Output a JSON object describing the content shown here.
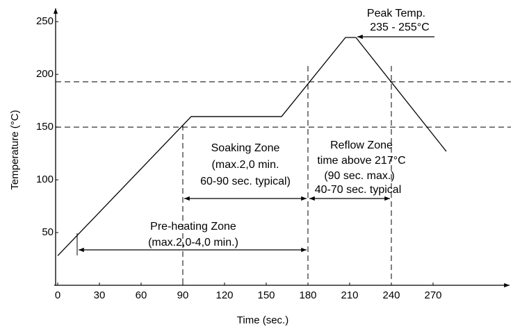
{
  "chart_data": {
    "type": "line",
    "x_label": "Time (sec.)",
    "y_label": "Temperature (°C)",
    "x": [
      0,
      96,
      161,
      207,
      214.5,
      279.5
    ],
    "series": [
      {
        "color": "#000000",
        "values": [
          28,
          160,
          160,
          235,
          235,
          127
        ]
      }
    ],
    "xlim": [
      0,
      325
    ],
    "ylim": [
      0,
      262
    ],
    "xticks": [
      0,
      30,
      60,
      90,
      120,
      150,
      180,
      210,
      240,
      270
    ],
    "yticks": [
      50,
      100,
      150,
      200,
      250
    ],
    "hlines": [
      150,
      193
    ],
    "vlines": [
      90,
      180,
      240
    ],
    "spans": [
      [
        14,
        180
      ],
      [
        90,
        180
      ],
      [
        180,
        240
      ]
    ],
    "annotations": [
      [
        "Peak Temp.",
        "235 - 255°C"
      ],
      [
        "Soaking Zone",
        "(max.2,0 min.",
        "60-90 sec. typical)"
      ],
      [
        "Reflow Zone",
        "time above 217°C",
        "(90 sec. max.)",
        "40-70 sec. typical"
      ],
      [
        "Pre-heating Zone",
        "(max.2,0-4,0 min.)"
      ]
    ]
  }
}
